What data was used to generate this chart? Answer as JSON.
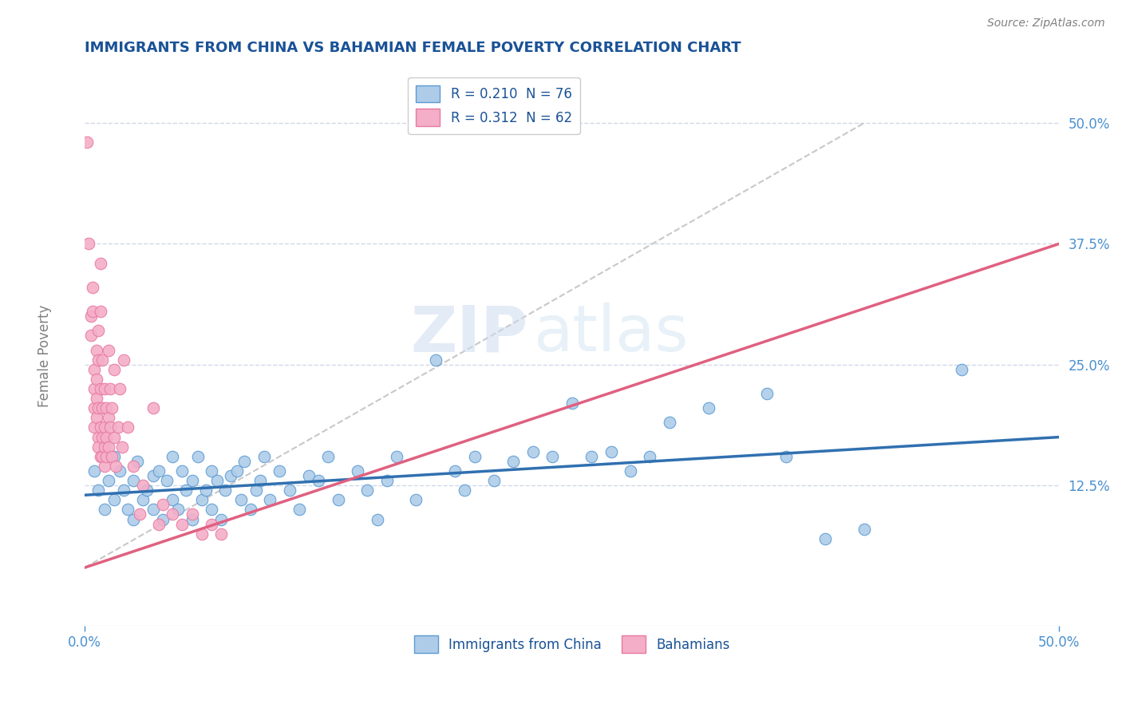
{
  "title": "IMMIGRANTS FROM CHINA VS BAHAMIAN FEMALE POVERTY CORRELATION CHART",
  "source": "Source: ZipAtlas.com",
  "ylabel": "Female Poverty",
  "xlim": [
    0.0,
    0.5
  ],
  "ylim": [
    -0.02,
    0.56
  ],
  "yticks": [
    0.125,
    0.25,
    0.375,
    0.5
  ],
  "ytick_labels": [
    "12.5%",
    "25.0%",
    "37.5%",
    "50.0%"
  ],
  "xticks": [
    0.0,
    0.5
  ],
  "xtick_labels": [
    "0.0%",
    "50.0%"
  ],
  "legend_entries": [
    {
      "label": "R = 0.210  N = 76",
      "color": "#aac4e0"
    },
    {
      "label": "R = 0.312  N = 62",
      "color": "#f4b8c8"
    }
  ],
  "watermark_zip": "ZIP",
  "watermark_atlas": "atlas",
  "blue_color": "#5b9bd5",
  "pink_color": "#e879a0",
  "blue_scatter_color": "#aecce8",
  "pink_scatter_color": "#f4aec8",
  "blue_line_color": "#3070b0",
  "pink_line_color": "#e06080",
  "dashed_line_color": "#c8c8c8",
  "grid_color": "#d0d8e8",
  "title_color": "#1a5296",
  "axis_color": "#4a90d0",
  "legend_label_blue": "Immigrants from China",
  "legend_label_pink": "Bahamians",
  "blue_trend": [
    0.0,
    0.115,
    0.5,
    0.175
  ],
  "pink_trend": [
    0.0,
    0.04,
    0.5,
    0.375
  ],
  "dashed_trend": [
    0.0,
    0.04,
    0.4,
    0.5
  ],
  "blue_scatter": [
    [
      0.005,
      0.14
    ],
    [
      0.007,
      0.12
    ],
    [
      0.01,
      0.1
    ],
    [
      0.012,
      0.13
    ],
    [
      0.015,
      0.11
    ],
    [
      0.015,
      0.155
    ],
    [
      0.018,
      0.14
    ],
    [
      0.02,
      0.12
    ],
    [
      0.022,
      0.1
    ],
    [
      0.025,
      0.09
    ],
    [
      0.025,
      0.13
    ],
    [
      0.027,
      0.15
    ],
    [
      0.03,
      0.11
    ],
    [
      0.032,
      0.12
    ],
    [
      0.035,
      0.1
    ],
    [
      0.035,
      0.135
    ],
    [
      0.038,
      0.14
    ],
    [
      0.04,
      0.09
    ],
    [
      0.042,
      0.13
    ],
    [
      0.045,
      0.11
    ],
    [
      0.045,
      0.155
    ],
    [
      0.048,
      0.1
    ],
    [
      0.05,
      0.14
    ],
    [
      0.052,
      0.12
    ],
    [
      0.055,
      0.09
    ],
    [
      0.055,
      0.13
    ],
    [
      0.058,
      0.155
    ],
    [
      0.06,
      0.11
    ],
    [
      0.062,
      0.12
    ],
    [
      0.065,
      0.1
    ],
    [
      0.065,
      0.14
    ],
    [
      0.068,
      0.13
    ],
    [
      0.07,
      0.09
    ],
    [
      0.072,
      0.12
    ],
    [
      0.075,
      0.135
    ],
    [
      0.078,
      0.14
    ],
    [
      0.08,
      0.11
    ],
    [
      0.082,
      0.15
    ],
    [
      0.085,
      0.1
    ],
    [
      0.088,
      0.12
    ],
    [
      0.09,
      0.13
    ],
    [
      0.092,
      0.155
    ],
    [
      0.095,
      0.11
    ],
    [
      0.1,
      0.14
    ],
    [
      0.105,
      0.12
    ],
    [
      0.11,
      0.1
    ],
    [
      0.115,
      0.135
    ],
    [
      0.12,
      0.13
    ],
    [
      0.125,
      0.155
    ],
    [
      0.13,
      0.11
    ],
    [
      0.14,
      0.14
    ],
    [
      0.145,
      0.12
    ],
    [
      0.15,
      0.09
    ],
    [
      0.155,
      0.13
    ],
    [
      0.16,
      0.155
    ],
    [
      0.17,
      0.11
    ],
    [
      0.18,
      0.255
    ],
    [
      0.19,
      0.14
    ],
    [
      0.195,
      0.12
    ],
    [
      0.2,
      0.155
    ],
    [
      0.21,
      0.13
    ],
    [
      0.22,
      0.15
    ],
    [
      0.23,
      0.16
    ],
    [
      0.24,
      0.155
    ],
    [
      0.25,
      0.21
    ],
    [
      0.26,
      0.155
    ],
    [
      0.27,
      0.16
    ],
    [
      0.28,
      0.14
    ],
    [
      0.29,
      0.155
    ],
    [
      0.3,
      0.19
    ],
    [
      0.32,
      0.205
    ],
    [
      0.35,
      0.22
    ],
    [
      0.36,
      0.155
    ],
    [
      0.38,
      0.07
    ],
    [
      0.4,
      0.08
    ],
    [
      0.45,
      0.245
    ]
  ],
  "pink_scatter": [
    [
      0.001,
      0.48
    ],
    [
      0.002,
      0.375
    ],
    [
      0.003,
      0.3
    ],
    [
      0.003,
      0.28
    ],
    [
      0.004,
      0.33
    ],
    [
      0.004,
      0.305
    ],
    [
      0.005,
      0.245
    ],
    [
      0.005,
      0.225
    ],
    [
      0.005,
      0.205
    ],
    [
      0.005,
      0.185
    ],
    [
      0.006,
      0.265
    ],
    [
      0.006,
      0.235
    ],
    [
      0.006,
      0.215
    ],
    [
      0.006,
      0.195
    ],
    [
      0.007,
      0.285
    ],
    [
      0.007,
      0.255
    ],
    [
      0.007,
      0.205
    ],
    [
      0.007,
      0.175
    ],
    [
      0.007,
      0.165
    ],
    [
      0.008,
      0.355
    ],
    [
      0.008,
      0.305
    ],
    [
      0.008,
      0.225
    ],
    [
      0.008,
      0.185
    ],
    [
      0.008,
      0.155
    ],
    [
      0.009,
      0.255
    ],
    [
      0.009,
      0.205
    ],
    [
      0.009,
      0.175
    ],
    [
      0.009,
      0.155
    ],
    [
      0.01,
      0.225
    ],
    [
      0.01,
      0.185
    ],
    [
      0.01,
      0.165
    ],
    [
      0.01,
      0.145
    ],
    [
      0.011,
      0.205
    ],
    [
      0.011,
      0.175
    ],
    [
      0.011,
      0.155
    ],
    [
      0.012,
      0.265
    ],
    [
      0.012,
      0.195
    ],
    [
      0.012,
      0.165
    ],
    [
      0.013,
      0.225
    ],
    [
      0.013,
      0.185
    ],
    [
      0.014,
      0.205
    ],
    [
      0.014,
      0.155
    ],
    [
      0.015,
      0.245
    ],
    [
      0.015,
      0.175
    ],
    [
      0.016,
      0.145
    ],
    [
      0.017,
      0.185
    ],
    [
      0.018,
      0.225
    ],
    [
      0.019,
      0.165
    ],
    [
      0.02,
      0.255
    ],
    [
      0.022,
      0.185
    ],
    [
      0.025,
      0.145
    ],
    [
      0.028,
      0.095
    ],
    [
      0.03,
      0.125
    ],
    [
      0.035,
      0.205
    ],
    [
      0.038,
      0.085
    ],
    [
      0.04,
      0.105
    ],
    [
      0.045,
      0.095
    ],
    [
      0.05,
      0.085
    ],
    [
      0.055,
      0.095
    ],
    [
      0.06,
      0.075
    ],
    [
      0.065,
      0.085
    ],
    [
      0.07,
      0.075
    ]
  ]
}
